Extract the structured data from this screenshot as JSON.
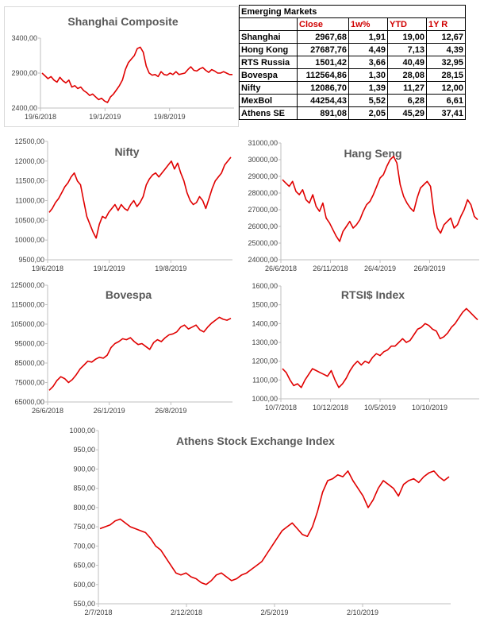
{
  "table": {
    "title": "Emerging Markets",
    "headers": [
      "Close",
      "1w%",
      "YTD",
      "1Y R"
    ],
    "rows": [
      {
        "name": "Shanghai",
        "close": "2967,68",
        "w1": "1,91",
        "ytd": "19,00",
        "y1": "12,67"
      },
      {
        "name": "Hong Kong",
        "close": "27687,76",
        "w1": "4,49",
        "ytd": "7,13",
        "y1": "4,39"
      },
      {
        "name": "RTS Russia",
        "close": "1501,42",
        "w1": "3,66",
        "ytd": "40,49",
        "y1": "32,95"
      },
      {
        "name": "Bovespa",
        "close": "112564,86",
        "w1": "1,30",
        "ytd": "28,08",
        "y1": "28,15"
      },
      {
        "name": "Nifty",
        "close": "12086,70",
        "w1": "1,39",
        "ytd": "11,27",
        "y1": "12,00"
      },
      {
        "name": "MexBol",
        "close": "44254,43",
        "w1": "5,52",
        "ytd": "6,28",
        "y1": "6,61"
      },
      {
        "name": "Athens SE",
        "close": "891,08",
        "w1": "2,05",
        "ytd": "45,29",
        "y1": "37,41"
      }
    ]
  },
  "colors": {
    "series": "#e00000",
    "axis": "#bfbfbf",
    "title": "#595959"
  },
  "chart_data": [
    {
      "id": "shanghai",
      "type": "line",
      "title": "Shanghai Composite",
      "ylim": [
        2400,
        3400
      ],
      "yticks": [
        "2400,00",
        "2900,00",
        "3400,00"
      ],
      "xticks": [
        "19/6/2018",
        "19/1/2019",
        "19/8/2019"
      ],
      "grid": false,
      "values": [
        2900,
        2860,
        2820,
        2850,
        2800,
        2770,
        2840,
        2790,
        2760,
        2800,
        2700,
        2720,
        2680,
        2700,
        2650,
        2620,
        2580,
        2600,
        2560,
        2520,
        2540,
        2500,
        2480,
        2560,
        2600,
        2660,
        2720,
        2800,
        2950,
        3050,
        3100,
        3150,
        3250,
        3270,
        3200,
        3000,
        2900,
        2870,
        2880,
        2850,
        2920,
        2880,
        2870,
        2900,
        2880,
        2920,
        2880,
        2890,
        2900,
        2950,
        2990,
        2940,
        2930,
        2960,
        2980,
        2940,
        2910,
        2950,
        2930,
        2900,
        2900,
        2920,
        2900,
        2880,
        2880
      ]
    },
    {
      "id": "nifty",
      "type": "line",
      "title": "Nifty",
      "ylim": [
        9500,
        12500
      ],
      "yticks": [
        "9500,00",
        "10000,00",
        "10500,00",
        "11000,00",
        "11500,00",
        "12000,00",
        "12500,00"
      ],
      "xticks": [
        "19/6/2018",
        "19/1/2019",
        "19/8/2019"
      ],
      "grid": false,
      "values": [
        10700,
        10800,
        10950,
        11050,
        11200,
        11350,
        11450,
        11600,
        11700,
        11500,
        11400,
        11000,
        10600,
        10400,
        10200,
        10050,
        10400,
        10600,
        10550,
        10700,
        10800,
        10900,
        10750,
        10900,
        10800,
        10750,
        10900,
        11000,
        10850,
        10950,
        11100,
        11400,
        11550,
        11650,
        11700,
        11600,
        11700,
        11800,
        11900,
        12000,
        11800,
        11950,
        11700,
        11500,
        11200,
        11000,
        10900,
        10950,
        11100,
        11000,
        10800,
        11050,
        11300,
        11500,
        11600,
        11700,
        11900,
        12000,
        12100
      ]
    },
    {
      "id": "hangseng",
      "type": "line",
      "title": "Hang Seng",
      "ylim": [
        24000,
        31000
      ],
      "yticks": [
        "24000,00",
        "25000,00",
        "26000,00",
        "27000,00",
        "28000,00",
        "29000,00",
        "30000,00",
        "31000,00"
      ],
      "xticks": [
        "26/6/2018",
        "26/11/2018",
        "26/4/2019",
        "26/9/2019"
      ],
      "grid": false,
      "values": [
        28800,
        28600,
        28400,
        28700,
        28100,
        27900,
        28200,
        27600,
        27400,
        27900,
        27200,
        26900,
        27400,
        26500,
        26200,
        25800,
        25400,
        25100,
        25700,
        26000,
        26300,
        25900,
        26100,
        26400,
        26900,
        27300,
        27500,
        27900,
        28400,
        28900,
        29100,
        29600,
        30000,
        30200,
        29800,
        28500,
        27800,
        27400,
        27100,
        26900,
        27700,
        28300,
        28500,
        28700,
        28400,
        26800,
        25900,
        25600,
        26100,
        26300,
        26500,
        25900,
        26100,
        26600,
        27000,
        27600,
        27300,
        26600,
        26400
      ]
    },
    {
      "id": "bovespa",
      "type": "line",
      "title": "Bovespa",
      "ylim": [
        65000,
        125000
      ],
      "yticks": [
        "65000,00",
        "75000,00",
        "85000,00",
        "95000,00",
        "105000,00",
        "115000,00",
        "125000,00"
      ],
      "xticks": [
        "26/6/2018",
        "26/1/2019",
        "26/8/2019"
      ],
      "grid": false,
      "values": [
        71000,
        73000,
        76000,
        78000,
        77000,
        75000,
        76500,
        79000,
        82000,
        84000,
        86000,
        85500,
        87000,
        88000,
        87500,
        89000,
        93000,
        95000,
        96000,
        97500,
        97000,
        98000,
        96000,
        94500,
        95000,
        93500,
        92000,
        95500,
        97000,
        96000,
        98000,
        99500,
        100000,
        101000,
        103500,
        104500,
        102500,
        103500,
        104500,
        102000,
        101000,
        103500,
        105500,
        107000,
        108500,
        107500,
        107000,
        108000
      ]
    },
    {
      "id": "rtsi",
      "type": "line",
      "title": "RTSI$ Index",
      "ylim": [
        1000,
        1600
      ],
      "yticks": [
        "1000,00",
        "1100,00",
        "1200,00",
        "1300,00",
        "1400,00",
        "1500,00",
        "1600,00"
      ],
      "xticks": [
        "10/7/2018",
        "10/12/2018",
        "10/5/2019",
        "10/10/2019"
      ],
      "grid": false,
      "values": [
        1160,
        1140,
        1100,
        1070,
        1080,
        1060,
        1100,
        1130,
        1160,
        1150,
        1140,
        1130,
        1120,
        1150,
        1100,
        1060,
        1080,
        1110,
        1150,
        1180,
        1200,
        1180,
        1200,
        1190,
        1220,
        1240,
        1230,
        1250,
        1260,
        1280,
        1280,
        1300,
        1320,
        1300,
        1310,
        1340,
        1370,
        1380,
        1400,
        1390,
        1370,
        1360,
        1320,
        1330,
        1350,
        1380,
        1400,
        1430,
        1460,
        1480,
        1460,
        1440,
        1420
      ]
    },
    {
      "id": "athens",
      "type": "line",
      "title": "Athens Stock Exchange Index",
      "ylim": [
        550,
        1000
      ],
      "yticks": [
        "550,00",
        "600,00",
        "650,00",
        "700,00",
        "750,00",
        "800,00",
        "850,00",
        "900,00",
        "950,00",
        "1000,00"
      ],
      "xticks": [
        "2/7/2018",
        "2/12/2018",
        "2/5/2019",
        "2/10/2019"
      ],
      "grid": false,
      "values": [
        745,
        750,
        755,
        765,
        770,
        760,
        750,
        745,
        740,
        735,
        720,
        700,
        690,
        670,
        650,
        630,
        625,
        630,
        620,
        615,
        605,
        600,
        610,
        625,
        630,
        620,
        610,
        615,
        625,
        630,
        640,
        650,
        660,
        680,
        700,
        720,
        740,
        750,
        760,
        745,
        730,
        725,
        750,
        790,
        840,
        870,
        875,
        885,
        880,
        895,
        870,
        850,
        830,
        800,
        820,
        850,
        870,
        860,
        850,
        830,
        860,
        870,
        875,
        865,
        880,
        890,
        895,
        880,
        870,
        880
      ]
    }
  ]
}
